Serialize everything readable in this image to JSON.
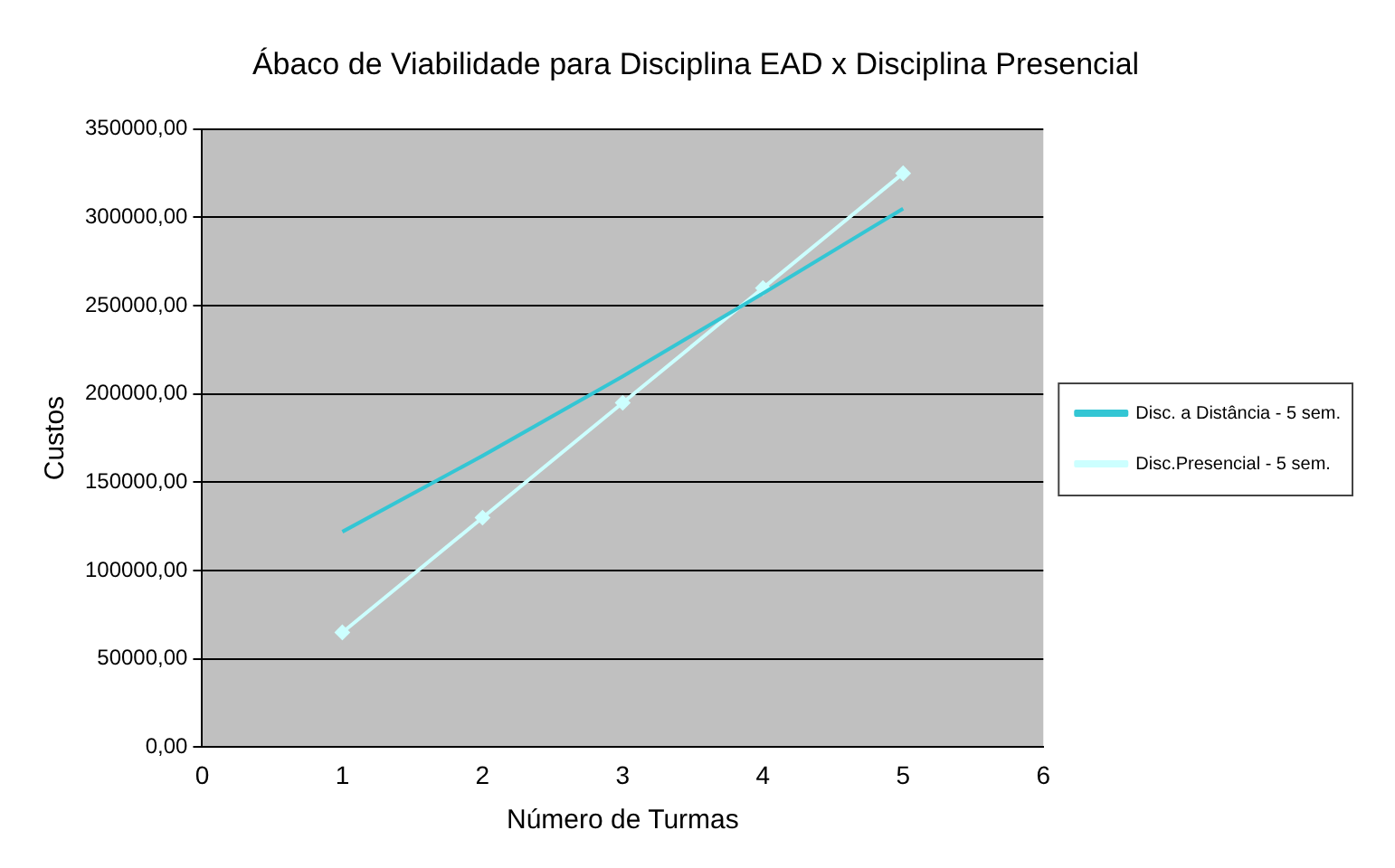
{
  "chart_data": {
    "type": "line",
    "title": "Ábaco de Viabilidade para Disciplina EAD x Disciplina Presencial",
    "xlabel": "Número de Turmas",
    "ylabel": "Custos",
    "x": [
      1,
      2,
      3,
      4,
      5
    ],
    "series": [
      {
        "name": "Disc. a Distância - 5 sem.",
        "color": "#33c6d4",
        "values": [
          122000,
          165000,
          210000,
          257000,
          305000
        ],
        "marker": "none"
      },
      {
        "name": "Disc.Presencial - 5 sem.",
        "color": "#ccffff",
        "values": [
          65000,
          130000,
          195000,
          260000,
          325000
        ],
        "marker": "diamond"
      }
    ],
    "xlim": [
      0,
      6
    ],
    "xticks": [
      0,
      1,
      2,
      3,
      4,
      5,
      6
    ],
    "ylim": [
      0,
      350000
    ],
    "yticks": [
      {
        "value": 0,
        "label": "0,00"
      },
      {
        "value": 50000,
        "label": "50000,00"
      },
      {
        "value": 100000,
        "label": "100000,00"
      },
      {
        "value": 150000,
        "label": "150000,00"
      },
      {
        "value": 200000,
        "label": "200000,00"
      },
      {
        "value": 250000,
        "label": "250000,00"
      },
      {
        "value": 300000,
        "label": "300000,00"
      },
      {
        "value": 350000,
        "label": "350000,00"
      }
    ],
    "grid": "y",
    "legend": "right",
    "line_style": "solid"
  }
}
